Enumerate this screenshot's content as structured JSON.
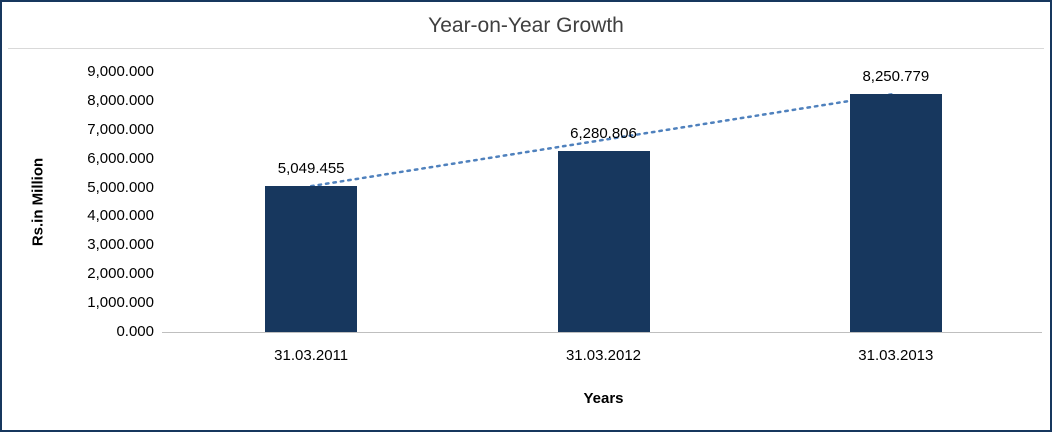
{
  "chart_data": {
    "type": "bar",
    "title": "Year-on-Year Growth",
    "xlabel": "Years",
    "ylabel": "Rs.in Million",
    "categories": [
      "31.03.2011",
      "31.03.2012",
      "31.03.2013"
    ],
    "values": [
      5049.455,
      6280.806,
      8250.779
    ],
    "value_labels": [
      "5,049.455",
      "6,280.806",
      "8,250.779"
    ],
    "ylim": [
      0,
      9000
    ],
    "ytick_step": 1000,
    "ytick_labels": [
      "0.000",
      "1,000.000",
      "2,000.000",
      "3,000.000",
      "4,000.000",
      "5,000.000",
      "6,000.000",
      "7,000.000",
      "8,000.000",
      "9,000.000"
    ],
    "legend": "none",
    "grid": "off",
    "bar_color": "#17375E",
    "trendline": {
      "style": "dotted",
      "color": "#4F81BD"
    },
    "border_color": "#17375E"
  }
}
